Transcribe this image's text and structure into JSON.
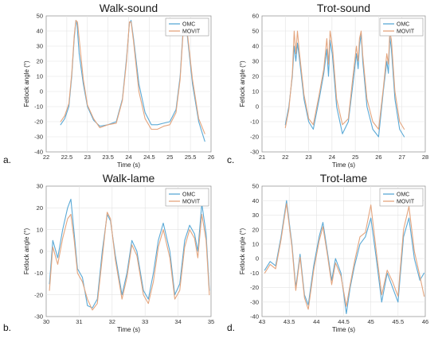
{
  "chart_data": [
    {
      "type": "line",
      "panel_label": "a.",
      "title": "Walk-sound",
      "xlabel": "Time (s)",
      "ylabel": "Fetlock angle (°)",
      "xlim": [
        22,
        26
      ],
      "ylim": [
        -40,
        50
      ],
      "xticks": [
        22,
        22.5,
        23,
        23.5,
        24,
        24.5,
        25,
        25.5,
        26
      ],
      "yticks": [
        -40,
        -30,
        -20,
        -10,
        0,
        10,
        20,
        30,
        40,
        50
      ],
      "grid": true,
      "legend": "top-right",
      "series": [
        {
          "name": "OMC",
          "color": "#5aa9d6",
          "x": [
            22.35,
            22.45,
            22.55,
            22.62,
            22.68,
            22.72,
            22.75,
            22.8,
            22.9,
            23.0,
            23.15,
            23.3,
            23.5,
            23.7,
            23.85,
            23.95,
            24.02,
            24.06,
            24.12,
            24.25,
            24.4,
            24.55,
            24.7,
            24.85,
            25.0,
            25.15,
            25.25,
            25.32,
            25.36,
            25.42,
            25.55,
            25.7,
            25.85
          ],
          "y": [
            -22,
            -18,
            -10,
            10,
            35,
            47,
            44,
            25,
            5,
            -10,
            -19,
            -23,
            -22,
            -20,
            -5,
            22,
            45,
            47,
            35,
            5,
            -14,
            -22,
            -22,
            -21,
            -20,
            -12,
            10,
            40,
            46,
            38,
            5,
            -20,
            -33
          ]
        },
        {
          "name": "MOVIT",
          "color": "#e4a57e",
          "x": [
            22.35,
            22.45,
            22.55,
            22.62,
            22.68,
            22.72,
            22.76,
            22.8,
            22.9,
            23.0,
            23.15,
            23.3,
            23.5,
            23.7,
            23.85,
            23.95,
            24.02,
            24.06,
            24.12,
            24.25,
            24.4,
            24.55,
            24.7,
            24.85,
            25.0,
            25.15,
            25.25,
            25.32,
            25.37,
            25.42,
            25.55,
            25.7,
            25.85
          ],
          "y": [
            -20,
            -16,
            -8,
            12,
            37,
            47,
            46,
            35,
            8,
            -9,
            -18,
            -24,
            -22,
            -21,
            -6,
            20,
            46,
            46,
            33,
            0,
            -18,
            -25,
            -25,
            -23,
            -22,
            -14,
            8,
            38,
            44,
            40,
            8,
            -18,
            -28
          ]
        }
      ]
    },
    {
      "type": "line",
      "panel_label": "c.",
      "title": "Trot-sound",
      "xlabel": "Time (s)",
      "ylabel": "Fetlock angle (°)",
      "xlim": [
        21,
        28
      ],
      "ylim": [
        -30,
        60
      ],
      "xticks": [
        21,
        22,
        23,
        24,
        25,
        26,
        27,
        28
      ],
      "yticks": [
        -30,
        -20,
        -10,
        0,
        10,
        20,
        30,
        40,
        50,
        60
      ],
      "grid": true,
      "legend": "top-right",
      "series": [
        {
          "name": "OMC",
          "color": "#5aa9d6",
          "x": [
            22.0,
            22.15,
            22.3,
            22.38,
            22.45,
            22.52,
            22.6,
            22.8,
            23.0,
            23.2,
            23.45,
            23.65,
            23.78,
            23.85,
            23.92,
            24.02,
            24.2,
            24.45,
            24.7,
            24.9,
            25.05,
            25.12,
            25.18,
            25.25,
            25.32,
            25.5,
            25.75,
            26.0,
            26.2,
            26.35,
            26.42,
            26.48,
            26.55,
            26.7,
            26.9,
            27.1
          ],
          "y": [
            -12,
            0,
            20,
            40,
            30,
            42,
            32,
            5,
            -10,
            -15,
            5,
            22,
            38,
            20,
            44,
            34,
            0,
            -18,
            -10,
            15,
            35,
            25,
            40,
            48,
            30,
            0,
            -15,
            -20,
            10,
            30,
            22,
            46,
            38,
            5,
            -15,
            -20
          ]
        },
        {
          "name": "MOVIT",
          "color": "#e4a57e",
          "x": [
            22.0,
            22.15,
            22.3,
            22.38,
            22.45,
            22.52,
            22.6,
            22.8,
            23.0,
            23.2,
            23.45,
            23.65,
            23.78,
            23.85,
            23.92,
            24.02,
            24.2,
            24.45,
            24.7,
            24.9,
            25.05,
            25.12,
            25.18,
            25.25,
            25.32,
            25.5,
            25.75,
            26.0,
            26.2,
            26.35,
            26.42,
            26.48,
            26.55,
            26.7,
            26.9,
            27.1
          ],
          "y": [
            -14,
            -2,
            22,
            50,
            35,
            50,
            36,
            8,
            -8,
            -12,
            8,
            25,
            45,
            28,
            50,
            40,
            5,
            -12,
            -8,
            20,
            40,
            30,
            45,
            50,
            34,
            5,
            -10,
            -15,
            12,
            35,
            28,
            50,
            44,
            10,
            -10,
            -15
          ]
        }
      ]
    },
    {
      "type": "line",
      "panel_label": "b.",
      "title": "Walk-lame",
      "xlabel": "Time (s)",
      "ylabel": "Fetlock angle (°)",
      "xlim": [
        30,
        35
      ],
      "ylim": [
        -30,
        30
      ],
      "xticks": [
        30,
        31,
        32,
        33,
        34,
        35
      ],
      "yticks": [
        -30,
        -20,
        -10,
        0,
        10,
        20,
        30
      ],
      "grid": true,
      "legend": "top-right",
      "series": [
        {
          "name": "OMC",
          "color": "#5aa9d6",
          "x": [
            30.1,
            30.2,
            30.35,
            30.5,
            30.65,
            30.75,
            30.85,
            30.95,
            31.1,
            31.25,
            31.4,
            31.55,
            31.7,
            31.85,
            31.95,
            32.1,
            32.3,
            32.45,
            32.6,
            32.75,
            32.95,
            33.1,
            33.25,
            33.4,
            33.55,
            33.75,
            33.9,
            34.05,
            34.2,
            34.35,
            34.5,
            34.6,
            34.72,
            34.85,
            34.95
          ],
          "y": [
            -15,
            5,
            -3,
            10,
            20,
            24,
            8,
            -8,
            -12,
            -25,
            -26,
            -22,
            0,
            17,
            14,
            -2,
            -20,
            -10,
            5,
            0,
            -18,
            -22,
            -10,
            5,
            13,
            0,
            -20,
            -15,
            5,
            12,
            8,
            0,
            22,
            8,
            -18
          ]
        },
        {
          "name": "MOVIT",
          "color": "#e4a57e",
          "x": [
            30.1,
            30.2,
            30.35,
            30.5,
            30.65,
            30.75,
            30.85,
            30.95,
            31.1,
            31.25,
            31.4,
            31.55,
            31.7,
            31.85,
            31.95,
            32.1,
            32.3,
            32.45,
            32.6,
            32.75,
            32.95,
            33.1,
            33.25,
            33.4,
            33.55,
            33.75,
            33.9,
            34.05,
            34.2,
            34.35,
            34.5,
            34.6,
            34.72,
            34.85,
            34.95
          ],
          "y": [
            -18,
            2,
            -6,
            6,
            15,
            17,
            5,
            -10,
            -14,
            -22,
            -27,
            -24,
            -3,
            18,
            15,
            -4,
            -22,
            -12,
            3,
            -2,
            -20,
            -24,
            -14,
            2,
            10,
            -3,
            -22,
            -18,
            2,
            10,
            6,
            -3,
            17,
            5,
            -20
          ]
        }
      ]
    },
    {
      "type": "line",
      "panel_label": "d.",
      "title": "Trot-lame",
      "xlabel": "Time (s)",
      "ylabel": "Fetlock angle (°)",
      "xlim": [
        43,
        46
      ],
      "ylim": [
        -40,
        50
      ],
      "xticks": [
        43,
        43.5,
        44,
        44.5,
        45,
        45.5,
        46
      ],
      "yticks": [
        -40,
        -30,
        -20,
        -10,
        0,
        10,
        20,
        30,
        40,
        50
      ],
      "grid": true,
      "legend": "top-right",
      "series": [
        {
          "name": "OMC",
          "color": "#5aa9d6",
          "x": [
            43.05,
            43.15,
            43.25,
            43.35,
            43.45,
            43.55,
            43.62,
            43.7,
            43.78,
            43.85,
            43.95,
            44.05,
            44.12,
            44.2,
            44.28,
            44.35,
            44.45,
            44.55,
            44.62,
            44.7,
            44.8,
            44.9,
            45.0,
            45.1,
            45.2,
            45.3,
            45.4,
            45.5,
            45.6,
            45.7,
            45.8,
            45.9,
            45.98
          ],
          "y": [
            -8,
            -2,
            -5,
            15,
            40,
            10,
            -20,
            3,
            -25,
            -32,
            -5,
            15,
            25,
            5,
            -15,
            0,
            -10,
            -38,
            -20,
            -5,
            10,
            15,
            28,
            0,
            -30,
            -10,
            -20,
            -30,
            15,
            28,
            0,
            -15,
            -10
          ]
        },
        {
          "name": "MOVIT",
          "color": "#e4a57e",
          "x": [
            43.05,
            43.15,
            43.25,
            43.35,
            43.45,
            43.55,
            43.62,
            43.7,
            43.78,
            43.85,
            43.95,
            44.05,
            44.12,
            44.2,
            44.28,
            44.35,
            44.45,
            44.55,
            44.62,
            44.7,
            44.8,
            44.9,
            45.0,
            45.1,
            45.2,
            45.3,
            45.4,
            45.5,
            45.6,
            45.7,
            45.8,
            45.9,
            45.98
          ],
          "y": [
            -10,
            -4,
            -7,
            13,
            38,
            8,
            -22,
            1,
            -27,
            -35,
            -8,
            12,
            22,
            3,
            -18,
            -3,
            -12,
            -33,
            -18,
            -2,
            15,
            18,
            37,
            5,
            -25,
            -8,
            -16,
            -26,
            20,
            36,
            5,
            -12,
            -26
          ]
        }
      ]
    }
  ]
}
